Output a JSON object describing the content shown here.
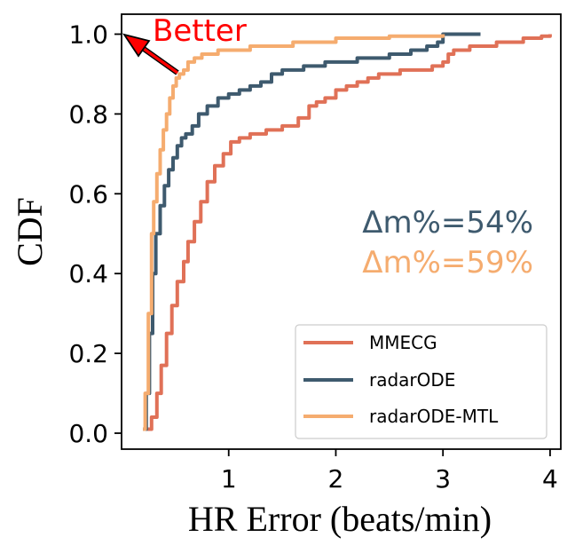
{
  "chart_data": {
    "type": "line",
    "xlabel": "HR Error (beats/min)",
    "ylabel": "CDF",
    "xlim": [
      0.0,
      4.1
    ],
    "ylim": [
      -0.04,
      1.05
    ],
    "xticks": [
      "1",
      "2",
      "3",
      "4"
    ],
    "yticks": [
      "0.0",
      "0.2",
      "0.4",
      "0.6",
      "0.8",
      "1.0"
    ],
    "xtick_values": [
      1,
      2,
      3,
      4
    ],
    "ytick_values": [
      0.0,
      0.2,
      0.4,
      0.6,
      0.8,
      1.0
    ],
    "legend": [
      "MMECG",
      "radarODE",
      "radarODE-MTL"
    ],
    "legend_position": "lower-right",
    "series": [
      {
        "name": "MMECG",
        "color": "#E07157",
        "x": [
          0.24,
          0.28,
          0.33,
          0.37,
          0.42,
          0.47,
          0.52,
          0.58,
          0.62,
          0.68,
          0.74,
          0.8,
          0.87,
          0.95,
          1.02,
          1.1,
          1.2,
          1.35,
          1.5,
          1.65,
          1.75,
          1.82,
          1.9,
          2.0,
          2.1,
          2.2,
          2.3,
          2.4,
          2.5,
          2.6,
          2.75,
          2.9,
          3.0,
          3.05,
          3.1,
          3.25,
          3.5,
          3.75,
          3.92,
          4.0
        ],
        "y": [
          0.01,
          0.04,
          0.1,
          0.17,
          0.25,
          0.32,
          0.38,
          0.43,
          0.48,
          0.53,
          0.58,
          0.63,
          0.67,
          0.7,
          0.73,
          0.74,
          0.75,
          0.76,
          0.77,
          0.79,
          0.82,
          0.83,
          0.84,
          0.86,
          0.87,
          0.88,
          0.89,
          0.9,
          0.9,
          0.91,
          0.91,
          0.92,
          0.93,
          0.95,
          0.96,
          0.97,
          0.98,
          0.99,
          0.995,
          1.0
        ]
      },
      {
        "name": "radarODE",
        "color": "#3E5A6E",
        "x": [
          0.2,
          0.23,
          0.26,
          0.29,
          0.32,
          0.36,
          0.4,
          0.44,
          0.48,
          0.52,
          0.56,
          0.6,
          0.66,
          0.72,
          0.8,
          0.9,
          1.0,
          1.1,
          1.2,
          1.3,
          1.4,
          1.5,
          1.7,
          1.9,
          2.2,
          2.5,
          2.7,
          2.85,
          2.95,
          3.0,
          3.35
        ],
        "y": [
          0.01,
          0.1,
          0.25,
          0.4,
          0.5,
          0.57,
          0.62,
          0.66,
          0.69,
          0.72,
          0.74,
          0.75,
          0.77,
          0.8,
          0.82,
          0.84,
          0.85,
          0.86,
          0.87,
          0.88,
          0.9,
          0.91,
          0.92,
          0.93,
          0.94,
          0.95,
          0.96,
          0.97,
          0.98,
          1.0,
          1.0
        ]
      },
      {
        "name": "radarODE-MTL",
        "color": "#F5AC6F",
        "x": [
          0.2,
          0.22,
          0.25,
          0.28,
          0.3,
          0.33,
          0.36,
          0.39,
          0.42,
          0.45,
          0.48,
          0.51,
          0.54,
          0.58,
          0.62,
          0.68,
          0.75,
          0.9,
          1.2,
          1.6,
          2.0,
          2.5,
          3.0
        ],
        "y": [
          0.01,
          0.1,
          0.3,
          0.5,
          0.58,
          0.65,
          0.71,
          0.76,
          0.8,
          0.84,
          0.87,
          0.89,
          0.9,
          0.91,
          0.93,
          0.94,
          0.95,
          0.96,
          0.97,
          0.98,
          0.99,
          0.995,
          1.0
        ]
      }
    ],
    "annotations": {
      "better_text": "Better",
      "better_color": "#FF0000",
      "delta_radarode": "Δm%=54%",
      "delta_radarode_color": "#3E5A6E",
      "delta_mtl": "Δm%=59%",
      "delta_mtl_color": "#F5AC6F"
    }
  }
}
